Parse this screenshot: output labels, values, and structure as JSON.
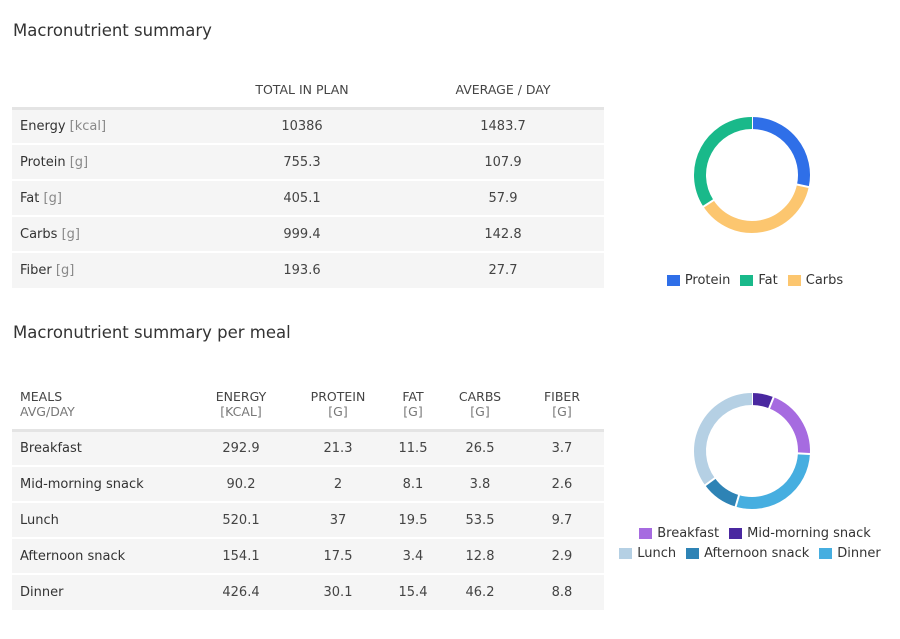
{
  "summary": {
    "title": "Macronutrient summary",
    "columns": [
      "TOTAL IN PLAN",
      "AVERAGE / DAY"
    ],
    "rows": [
      {
        "label": "Energy",
        "unit": "[kcal]",
        "total": "10386",
        "avg": "1483.7"
      },
      {
        "label": "Protein",
        "unit": "[g]",
        "total": "755.3",
        "avg": "107.9"
      },
      {
        "label": "Fat",
        "unit": "[g]",
        "total": "405.1",
        "avg": "57.9"
      },
      {
        "label": "Carbs",
        "unit": "[g]",
        "total": "999.4",
        "avg": "142.8"
      },
      {
        "label": "Fiber",
        "unit": "[g]",
        "total": "193.6",
        "avg": "27.7"
      }
    ]
  },
  "per_meal": {
    "title": "Macronutrient summary per meal",
    "columns": [
      {
        "label": "MEALS",
        "sub": "AVG/DAY"
      },
      {
        "label": "ENERGY",
        "sub": "[KCAL]"
      },
      {
        "label": "PROTEIN",
        "sub": "[G]"
      },
      {
        "label": "FAT",
        "sub": "[G]"
      },
      {
        "label": "CARBS",
        "sub": "[G]"
      },
      {
        "label": "FIBER",
        "sub": "[G]"
      }
    ],
    "rows": [
      {
        "meal": "Breakfast",
        "energy": "292.9",
        "protein": "21.3",
        "fat": "11.5",
        "carbs": "26.5",
        "fiber": "3.7"
      },
      {
        "meal": "Mid-morning snack",
        "energy": "90.2",
        "protein": "2",
        "fat": "8.1",
        "carbs": "3.8",
        "fiber": "2.6"
      },
      {
        "meal": "Lunch",
        "energy": "520.1",
        "protein": "37",
        "fat": "19.5",
        "carbs": "53.5",
        "fiber": "9.7"
      },
      {
        "meal": "Afternoon snack",
        "energy": "154.1",
        "protein": "17.5",
        "fat": "3.4",
        "carbs": "12.8",
        "fiber": "2.9"
      },
      {
        "meal": "Dinner",
        "energy": "426.4",
        "protein": "30.1",
        "fat": "15.4",
        "carbs": "46.2",
        "fiber": "8.8"
      }
    ]
  },
  "chart_data": [
    {
      "type": "pie",
      "variant": "donut",
      "legend": "bottom",
      "slices": [
        {
          "name": "Protein",
          "value": 431.6,
          "color": "#2f6fe8"
        },
        {
          "name": "Carbs",
          "value": 571.2,
          "color": "#fcc66f"
        },
        {
          "name": "Fat",
          "value": 521.1,
          "color": "#19b98a"
        }
      ],
      "legend_order": [
        "Protein",
        "Fat",
        "Carbs"
      ]
    },
    {
      "type": "pie",
      "variant": "donut",
      "legend": "bottom",
      "slices": [
        {
          "name": "Mid-morning snack",
          "value": 90.2,
          "color": "#4a28a0"
        },
        {
          "name": "Breakfast",
          "value": 292.9,
          "color": "#a66be0"
        },
        {
          "name": "Dinner",
          "value": 426.4,
          "color": "#46aee0"
        },
        {
          "name": "Afternoon snack",
          "value": 154.1,
          "color": "#2e83b5"
        },
        {
          "name": "Lunch",
          "value": 520.1,
          "color": "#b5d0e4"
        }
      ],
      "legend_order": [
        "Breakfast",
        "Mid-morning snack",
        "Lunch",
        "Afternoon snack",
        "Dinner"
      ]
    }
  ]
}
